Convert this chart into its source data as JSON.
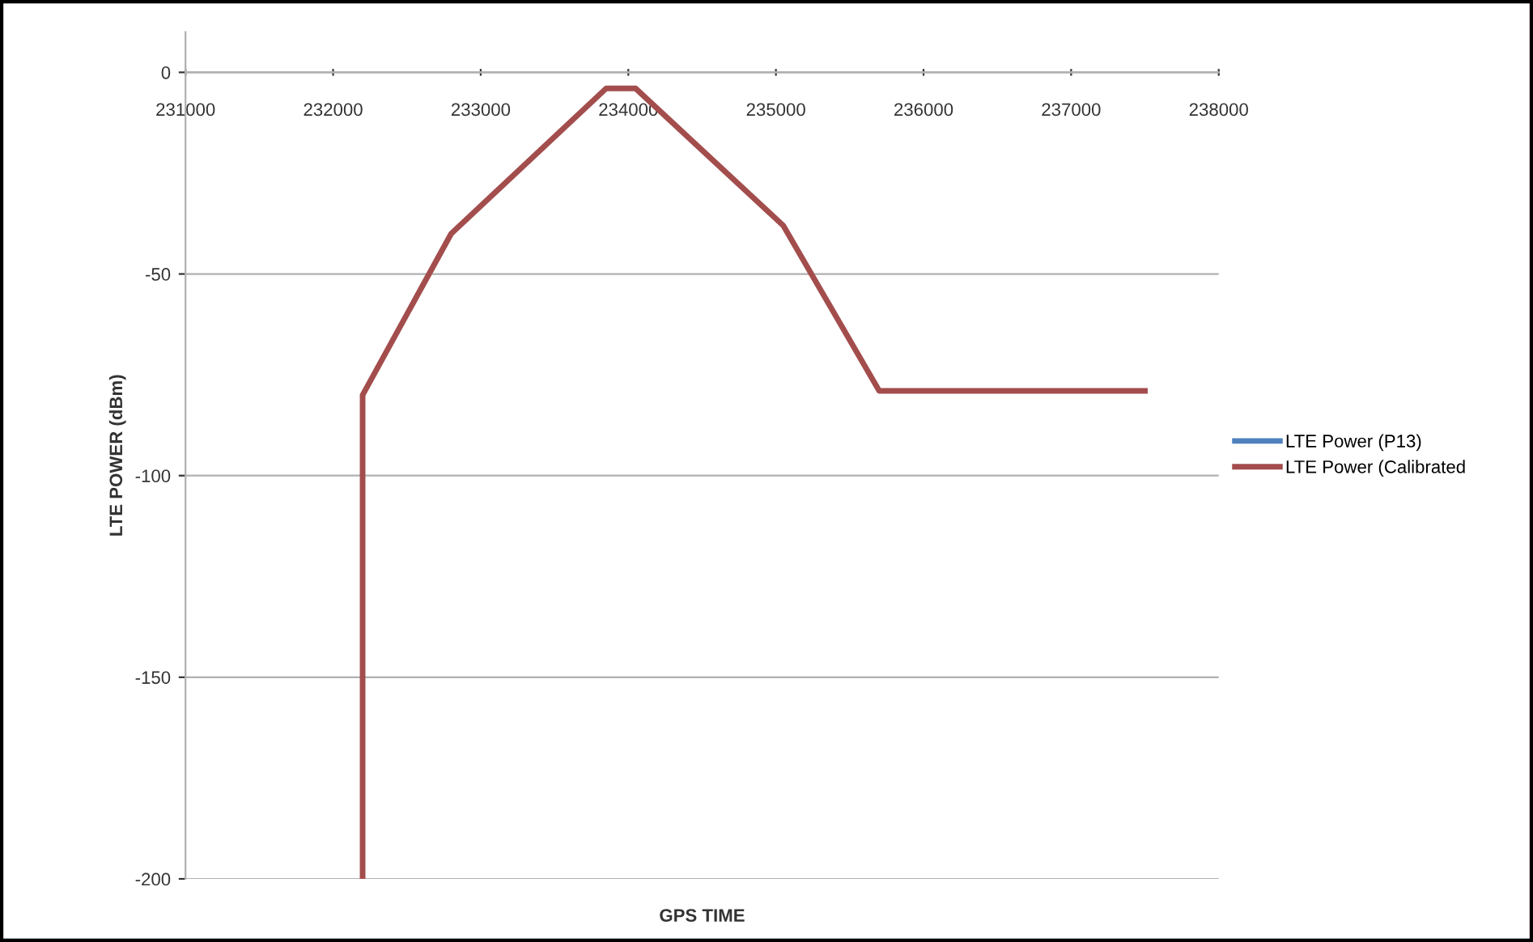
{
  "chart_data": {
    "type": "line",
    "xlabel": "GPS TIME",
    "ylabel": "LTE POWER (dBm)",
    "xlim": [
      231000,
      238000
    ],
    "xticks": [
      231000,
      232000,
      233000,
      234000,
      235000,
      236000,
      237000,
      238000
    ],
    "ylim": [
      -200,
      10
    ],
    "yticks": [
      -200,
      -150,
      -100,
      -50,
      0
    ],
    "grid": "y",
    "legend": "right",
    "marker": "none",
    "line_style": "solid",
    "x": [
      232200,
      232200,
      232800,
      233850,
      234050,
      235050,
      235700,
      237500
    ],
    "series": [
      {
        "name": "LTE Power (P13)",
        "color": "#4f81bd",
        "values": [
          null,
          null,
          null,
          null,
          null,
          null,
          null,
          null
        ]
      },
      {
        "name": "LTE Power (Calibrated",
        "color": "#a34d4d",
        "values": [
          -200,
          -80,
          -40,
          -4,
          -4,
          -38,
          -79,
          -79
        ]
      }
    ]
  }
}
